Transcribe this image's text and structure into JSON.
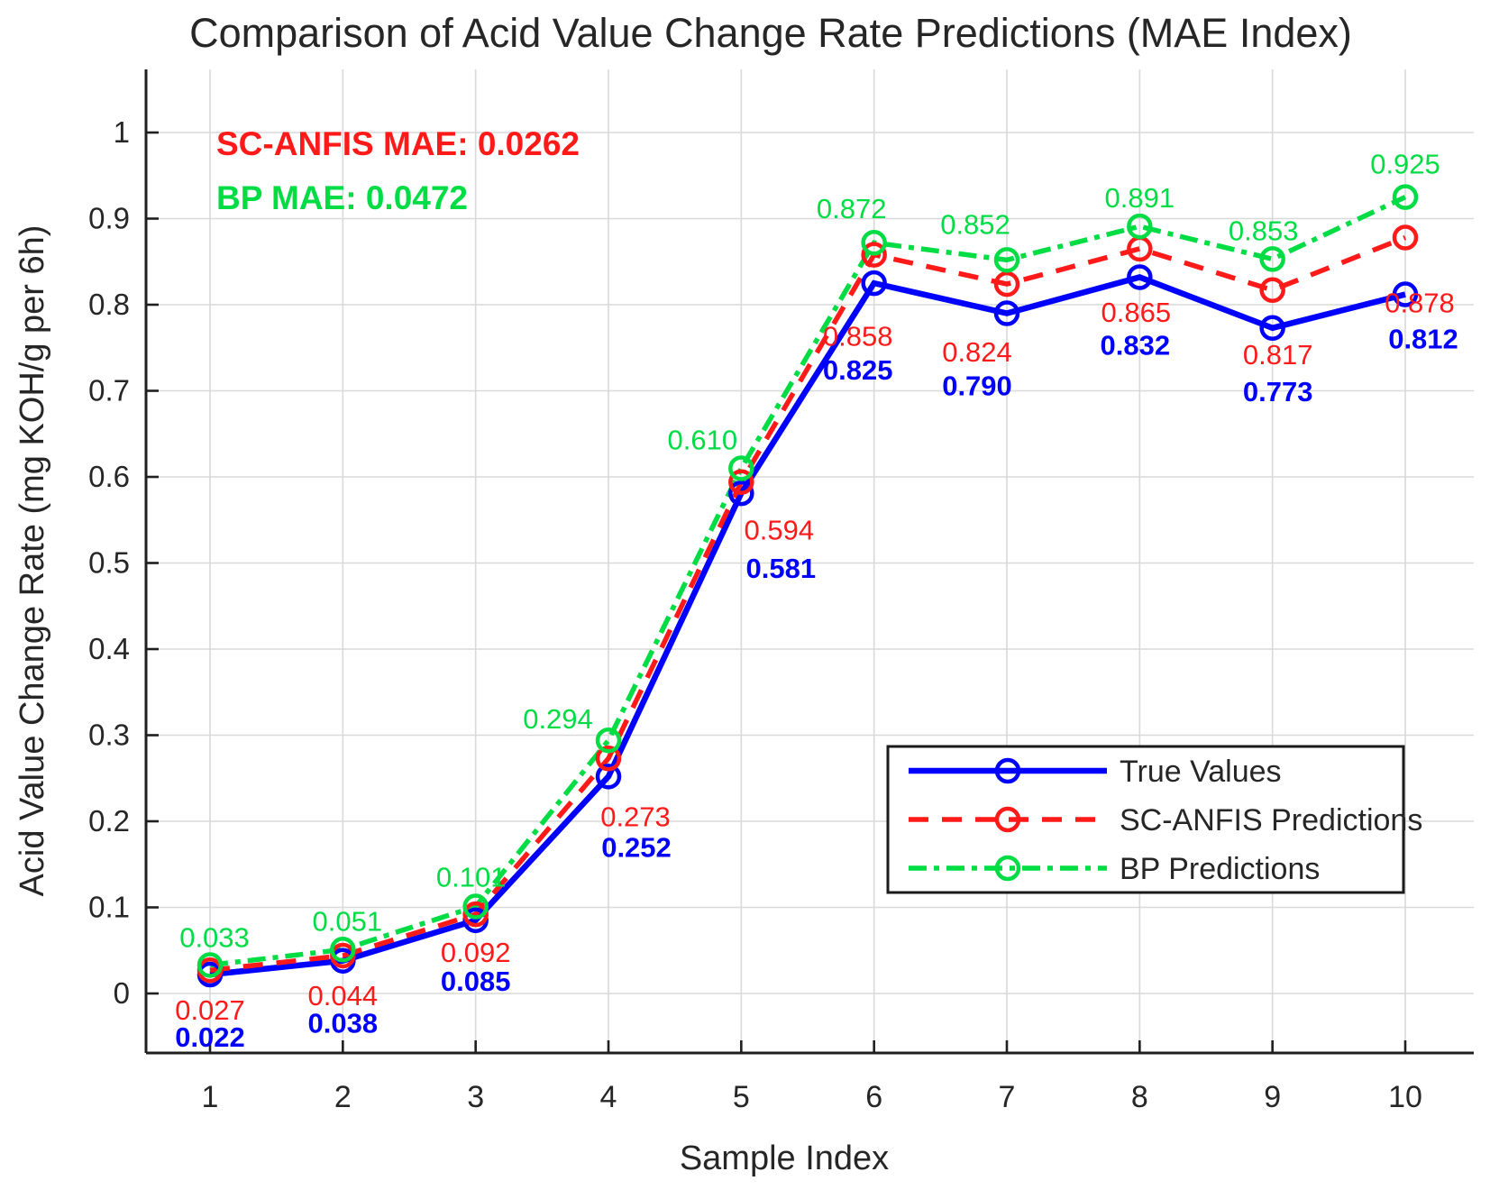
{
  "figure": {
    "title": "Comparison of Acid Value Change Rate Predictions (MAE Index)",
    "xlabel": "Sample Index",
    "ylabel": "Acid Value Change Rate (mg KOH/g per 6h)"
  },
  "annotations": [
    {
      "text": "SC-ANFIS MAE: 0.0262",
      "color": "#ff1a1a"
    },
    {
      "text": "BP MAE: 0.0472",
      "color": "#00dd44"
    }
  ],
  "chart_data": {
    "type": "line",
    "title": "Comparison of Acid Value Change Rate Predictions (MAE Index)",
    "xlabel": "Sample Index",
    "ylabel": "Acid Value Change Rate (mg KOH/g per 6h)",
    "x": [
      1,
      2,
      3,
      4,
      5,
      6,
      7,
      8,
      9,
      10
    ],
    "xticks": [
      "1",
      "2",
      "3",
      "4",
      "5",
      "6",
      "7",
      "8",
      "9",
      "10"
    ],
    "yticks": [
      {
        "value": 0,
        "label": "0"
      },
      {
        "value": 0.1,
        "label": "0.1"
      },
      {
        "value": 0.2,
        "label": "0.2"
      },
      {
        "value": 0.3,
        "label": "0.3"
      },
      {
        "value": 0.4,
        "label": "0.4"
      },
      {
        "value": 0.5,
        "label": "0.5"
      },
      {
        "value": 0.6,
        "label": "0.6"
      },
      {
        "value": 0.7,
        "label": "0.7"
      },
      {
        "value": 0.8,
        "label": "0.8"
      },
      {
        "value": 0.9,
        "label": "0.9"
      },
      {
        "value": 1,
        "label": "1"
      }
    ],
    "xlim": [
      0.5,
      10.52
    ],
    "ylim": [
      -0.069,
      1.073
    ],
    "grid": true,
    "legend_position": "lower right",
    "series": [
      {
        "name": "True Values",
        "color": "#0000ff",
        "line_style": "solid",
        "marker": "circle",
        "labels_bold": true,
        "values": [
          0.022,
          0.038,
          0.085,
          0.252,
          0.581,
          0.825,
          0.79,
          0.832,
          0.773,
          0.812
        ],
        "label_offsets": [
          [
            0,
            69
          ],
          [
            0,
            69
          ],
          [
            0,
            67
          ],
          [
            31,
            78
          ],
          [
            44,
            83
          ],
          [
            -18,
            96
          ],
          [
            -33,
            80
          ],
          [
            -5,
            75
          ],
          [
            6,
            70
          ],
          [
            20,
            49
          ]
        ]
      },
      {
        "name": "SC-ANFIS Predictions",
        "color": "#ff1a1a",
        "line_style": "dashed",
        "marker": "circle",
        "labels_bold": false,
        "values": [
          0.027,
          0.044,
          0.092,
          0.273,
          0.594,
          0.858,
          0.824,
          0.865,
          0.817,
          0.878
        ],
        "label_offsets": [
          [
            0,
            44
          ],
          [
            0,
            44
          ],
          [
            0,
            42
          ],
          [
            30,
            64
          ],
          [
            42,
            53
          ],
          [
            -18,
            90
          ],
          [
            -33,
            75
          ],
          [
            -4,
            70
          ],
          [
            6,
            71
          ],
          [
            16,
            72
          ]
        ]
      },
      {
        "name": "BP Predictions",
        "color": "#00dd44",
        "line_style": "dashdot",
        "marker": "circle",
        "labels_bold": false,
        "values": [
          0.033,
          0.051,
          0.101,
          0.294,
          0.61,
          0.872,
          0.852,
          0.891,
          0.853,
          0.925
        ],
        "label_offsets": [
          [
            5,
            -31
          ],
          [
            5,
            -32
          ],
          [
            -5,
            -33
          ],
          [
            -56,
            -24
          ],
          [
            -43,
            -32
          ],
          [
            -25,
            -38
          ],
          [
            -35,
            -40
          ],
          [
            0,
            -32
          ],
          [
            -10,
            -32
          ],
          [
            0,
            -37
          ]
        ]
      }
    ]
  }
}
